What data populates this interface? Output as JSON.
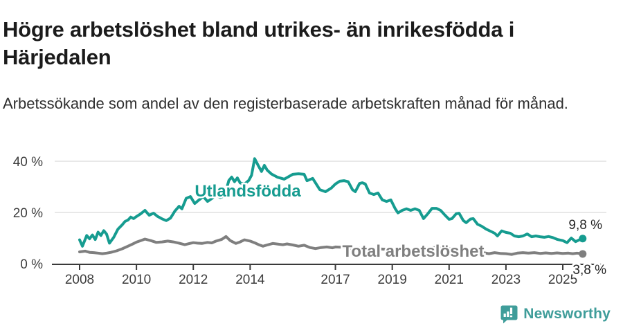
{
  "header": {
    "title": "Högre arbetslöshet bland utrikes- än inrikesfödda i Härjedalen",
    "subtitle": "Arbetssökande som andel av den registerbaserade arbetskraften månad för månad."
  },
  "chart_data": {
    "type": "line",
    "title": "Högre arbetslöshet bland utrikes- än inrikesfödda i Härjedalen",
    "subtitle": "Arbetssökande som andel av den registerbaserade arbetskraften månad för månad.",
    "unit": "%",
    "grid": "horizontal-only",
    "legend_position": "inline-labels-on-lines",
    "x_axis": {
      "range": [
        2008,
        2025.7
      ],
      "ticks": [
        2008,
        2010,
        2012,
        2014,
        2017,
        2019,
        2021,
        2023,
        2025
      ]
    },
    "y_axis": {
      "range": [
        0,
        44
      ],
      "ticks": [
        {
          "value": 0,
          "label": "0 %"
        },
        {
          "value": 20,
          "label": "20 %"
        },
        {
          "value": 40,
          "label": "40 %"
        }
      ]
    },
    "series": [
      {
        "name": "Utlandsfödda",
        "color": "#169c90",
        "end_value": 9.8,
        "end_label": "9,8 %",
        "points": [
          [
            2008.0,
            9.3
          ],
          [
            2008.1,
            6.8
          ],
          [
            2008.25,
            11.0
          ],
          [
            2008.35,
            9.7
          ],
          [
            2008.45,
            11.2
          ],
          [
            2008.55,
            9.4
          ],
          [
            2008.65,
            12.3
          ],
          [
            2008.75,
            11.0
          ],
          [
            2008.85,
            12.9
          ],
          [
            2008.95,
            11.5
          ],
          [
            2009.05,
            8.0
          ],
          [
            2009.2,
            10.3
          ],
          [
            2009.35,
            13.5
          ],
          [
            2009.5,
            15.2
          ],
          [
            2009.6,
            16.5
          ],
          [
            2009.7,
            17.0
          ],
          [
            2009.8,
            18.2
          ],
          [
            2009.9,
            17.6
          ],
          [
            2010.0,
            18.4
          ],
          [
            2010.15,
            19.5
          ],
          [
            2010.3,
            20.8
          ],
          [
            2010.45,
            18.9
          ],
          [
            2010.6,
            19.7
          ],
          [
            2010.75,
            18.4
          ],
          [
            2010.9,
            17.5
          ],
          [
            2011.05,
            16.8
          ],
          [
            2011.2,
            17.8
          ],
          [
            2011.35,
            20.5
          ],
          [
            2011.5,
            22.4
          ],
          [
            2011.6,
            21.4
          ],
          [
            2011.75,
            25.5
          ],
          [
            2011.9,
            26.2
          ],
          [
            2012.05,
            23.5
          ],
          [
            2012.2,
            24.9
          ],
          [
            2012.35,
            26.2
          ],
          [
            2012.5,
            24.3
          ],
          [
            2012.65,
            25.4
          ],
          [
            2012.8,
            26.8
          ],
          [
            2012.95,
            25.8
          ],
          [
            2013.1,
            26.5
          ],
          [
            2013.25,
            32.5
          ],
          [
            2013.35,
            33.8
          ],
          [
            2013.45,
            32.0
          ],
          [
            2013.55,
            33.5
          ],
          [
            2013.65,
            31.5
          ],
          [
            2013.8,
            31.0
          ],
          [
            2013.95,
            32.5
          ],
          [
            2014.05,
            34.5
          ],
          [
            2014.16,
            41.0
          ],
          [
            2014.3,
            38.0
          ],
          [
            2014.4,
            36.0
          ],
          [
            2014.5,
            38.4
          ],
          [
            2014.6,
            36.5
          ],
          [
            2014.75,
            35.0
          ],
          [
            2014.95,
            33.8
          ],
          [
            2015.2,
            33.0
          ],
          [
            2015.5,
            34.9
          ],
          [
            2015.7,
            35.1
          ],
          [
            2015.9,
            34.9
          ],
          [
            2016.0,
            32.4
          ],
          [
            2016.2,
            33.3
          ],
          [
            2016.45,
            28.9
          ],
          [
            2016.65,
            28.1
          ],
          [
            2016.85,
            29.5
          ],
          [
            2017.0,
            31.1
          ],
          [
            2017.15,
            32.2
          ],
          [
            2017.3,
            32.4
          ],
          [
            2017.45,
            32.0
          ],
          [
            2017.6,
            28.9
          ],
          [
            2017.7,
            28.1
          ],
          [
            2017.85,
            31.3
          ],
          [
            2017.95,
            31.6
          ],
          [
            2018.05,
            31.1
          ],
          [
            2018.2,
            27.6
          ],
          [
            2018.35,
            27.0
          ],
          [
            2018.5,
            27.6
          ],
          [
            2018.65,
            24.9
          ],
          [
            2018.8,
            24.3
          ],
          [
            2018.95,
            24.9
          ],
          [
            2019.1,
            21.5
          ],
          [
            2019.2,
            19.8
          ],
          [
            2019.35,
            20.8
          ],
          [
            2019.5,
            21.4
          ],
          [
            2019.65,
            20.8
          ],
          [
            2019.8,
            21.4
          ],
          [
            2019.95,
            20.8
          ],
          [
            2020.1,
            17.6
          ],
          [
            2020.25,
            19.5
          ],
          [
            2020.4,
            21.6
          ],
          [
            2020.55,
            21.6
          ],
          [
            2020.7,
            20.8
          ],
          [
            2020.85,
            19.0
          ],
          [
            2021.0,
            17.3
          ],
          [
            2021.1,
            17.6
          ],
          [
            2021.25,
            19.5
          ],
          [
            2021.35,
            19.7
          ],
          [
            2021.5,
            16.8
          ],
          [
            2021.6,
            16.0
          ],
          [
            2021.75,
            17.4
          ],
          [
            2021.85,
            17.6
          ],
          [
            2022.0,
            15.4
          ],
          [
            2022.15,
            14.6
          ],
          [
            2022.3,
            13.5
          ],
          [
            2022.45,
            12.7
          ],
          [
            2022.6,
            11.9
          ],
          [
            2022.7,
            10.8
          ],
          [
            2022.85,
            12.8
          ],
          [
            2023.0,
            12.2
          ],
          [
            2023.15,
            11.9
          ],
          [
            2023.3,
            10.8
          ],
          [
            2023.45,
            10.5
          ],
          [
            2023.6,
            10.8
          ],
          [
            2023.75,
            11.6
          ],
          [
            2023.9,
            10.5
          ],
          [
            2024.05,
            10.8
          ],
          [
            2024.2,
            10.5
          ],
          [
            2024.35,
            10.3
          ],
          [
            2024.5,
            10.6
          ],
          [
            2024.65,
            10.2
          ],
          [
            2024.8,
            9.5
          ],
          [
            2025.0,
            9.0
          ],
          [
            2025.15,
            8.2
          ],
          [
            2025.3,
            10.0
          ],
          [
            2025.45,
            8.6
          ],
          [
            2025.6,
            9.4
          ],
          [
            2025.7,
            9.8
          ]
        ]
      },
      {
        "name": "Total arbetslöshet",
        "color": "#7f7f7f",
        "end_value": 3.8,
        "end_label": "3,8 %",
        "points": [
          [
            2008.0,
            4.6
          ],
          [
            2008.2,
            4.9
          ],
          [
            2008.35,
            4.4
          ],
          [
            2008.5,
            4.3
          ],
          [
            2008.65,
            4.1
          ],
          [
            2008.8,
            3.9
          ],
          [
            2008.95,
            4.1
          ],
          [
            2009.1,
            4.4
          ],
          [
            2009.3,
            5.0
          ],
          [
            2009.5,
            5.8
          ],
          [
            2009.7,
            6.8
          ],
          [
            2009.85,
            7.6
          ],
          [
            2010.0,
            8.4
          ],
          [
            2010.15,
            9.0
          ],
          [
            2010.3,
            9.6
          ],
          [
            2010.5,
            9.0
          ],
          [
            2010.7,
            8.3
          ],
          [
            2010.9,
            8.5
          ],
          [
            2011.1,
            8.8
          ],
          [
            2011.3,
            8.5
          ],
          [
            2011.5,
            8.0
          ],
          [
            2011.7,
            7.4
          ],
          [
            2011.85,
            7.8
          ],
          [
            2012.0,
            8.2
          ],
          [
            2012.15,
            8.0
          ],
          [
            2012.3,
            7.9
          ],
          [
            2012.5,
            8.3
          ],
          [
            2012.65,
            8.1
          ],
          [
            2012.8,
            8.8
          ],
          [
            2013.0,
            9.5
          ],
          [
            2013.15,
            10.6
          ],
          [
            2013.3,
            9.0
          ],
          [
            2013.5,
            7.9
          ],
          [
            2013.65,
            8.5
          ],
          [
            2013.8,
            9.3
          ],
          [
            2014.0,
            8.8
          ],
          [
            2014.15,
            8.2
          ],
          [
            2014.3,
            7.4
          ],
          [
            2014.45,
            6.8
          ],
          [
            2014.6,
            7.3
          ],
          [
            2014.8,
            7.9
          ],
          [
            2015.0,
            7.6
          ],
          [
            2015.15,
            7.4
          ],
          [
            2015.3,
            7.7
          ],
          [
            2015.5,
            7.3
          ],
          [
            2015.7,
            6.8
          ],
          [
            2015.9,
            7.2
          ],
          [
            2016.1,
            6.3
          ],
          [
            2016.3,
            5.9
          ],
          [
            2016.5,
            6.3
          ],
          [
            2016.7,
            6.5
          ],
          [
            2016.9,
            6.2
          ],
          [
            2017.0,
            6.5
          ],
          [
            2017.2,
            6.4
          ],
          [
            2017.4,
            6.2
          ],
          [
            2017.6,
            6.0
          ],
          [
            2017.8,
            6.1
          ],
          [
            2018.0,
            5.9
          ],
          [
            2018.25,
            5.7
          ],
          [
            2018.5,
            5.8
          ],
          [
            2018.75,
            5.6
          ],
          [
            2019.0,
            5.5
          ],
          [
            2019.25,
            5.3
          ],
          [
            2019.5,
            5.5
          ],
          [
            2019.75,
            5.4
          ],
          [
            2020.0,
            5.6
          ],
          [
            2020.25,
            6.1
          ],
          [
            2020.5,
            6.3
          ],
          [
            2020.75,
            6.0
          ],
          [
            2021.0,
            5.8
          ],
          [
            2021.25,
            5.5
          ],
          [
            2021.5,
            5.2
          ],
          [
            2021.75,
            4.9
          ],
          [
            2022.0,
            4.6
          ],
          [
            2022.2,
            4.3
          ],
          [
            2022.4,
            3.9
          ],
          [
            2022.6,
            4.3
          ],
          [
            2022.8,
            4.0
          ],
          [
            2023.0,
            3.9
          ],
          [
            2023.2,
            3.6
          ],
          [
            2023.4,
            4.1
          ],
          [
            2023.6,
            4.3
          ],
          [
            2023.8,
            4.1
          ],
          [
            2024.0,
            4.3
          ],
          [
            2024.2,
            4.0
          ],
          [
            2024.4,
            4.2
          ],
          [
            2024.6,
            4.0
          ],
          [
            2024.8,
            4.2
          ],
          [
            2025.0,
            4.0
          ],
          [
            2025.2,
            4.1
          ],
          [
            2025.35,
            3.9
          ],
          [
            2025.5,
            4.1
          ],
          [
            2025.7,
            3.8
          ]
        ]
      }
    ],
    "colors": {
      "accent_teal": "#169c90",
      "line_gray": "#7f7f7f",
      "axis": "#3a3a3a",
      "gridline": "#d9d9d9",
      "tick_label": "#3d3d3d",
      "value_label": "#262626"
    }
  },
  "footer": {
    "brand": "Newsworthy",
    "brand_color": "#3f9d9a"
  }
}
